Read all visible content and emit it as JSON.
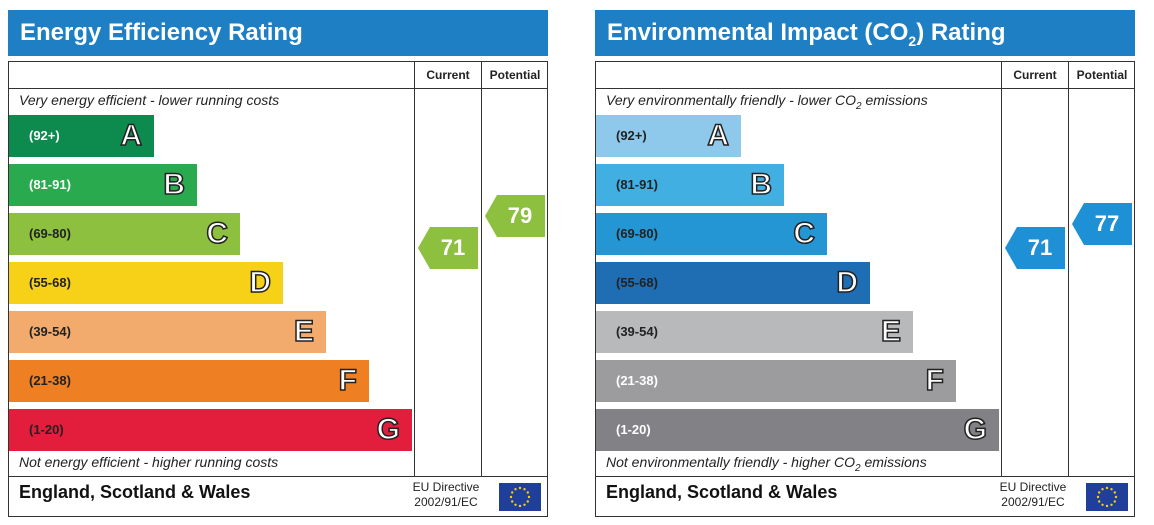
{
  "chart_data": [
    {
      "type": "bar",
      "title": "Energy Efficiency Rating",
      "columns": [
        "Current",
        "Potential"
      ],
      "top_note": "Very energy efficient - lower running costs",
      "bottom_note": "Not energy efficient - higher running costs",
      "bands": [
        {
          "letter": "A",
          "range": "(92+)",
          "color": "#0d8b4f",
          "text_color": "#ffffff"
        },
        {
          "letter": "B",
          "range": "(81-91)",
          "color": "#2aaa4e",
          "text_color": "#ffffff"
        },
        {
          "letter": "C",
          "range": "(69-80)",
          "color": "#8dc03f",
          "text_color": "#222222"
        },
        {
          "letter": "D",
          "range": "(55-68)",
          "color": "#f7d117",
          "text_color": "#222222"
        },
        {
          "letter": "E",
          "range": "(39-54)",
          "color": "#f2ab6c",
          "text_color": "#222222"
        },
        {
          "letter": "F",
          "range": "(21-38)",
          "color": "#ee7f22",
          "text_color": "#222222"
        },
        {
          "letter": "G",
          "range": "(1-20)",
          "color": "#e31d3c",
          "text_color": "#222222"
        }
      ],
      "current": {
        "value": 71,
        "label": "71",
        "band": "C",
        "color": "#8dc03f"
      },
      "potential": {
        "value": 79,
        "label": "79",
        "band": "C",
        "color": "#8dc03f"
      }
    },
    {
      "type": "bar",
      "title": "Environmental Impact (CO",
      "title_sub": "2",
      "title_end": ") Rating",
      "columns": [
        "Current",
        "Potential"
      ],
      "top_note": "Very environmentally friendly - lower CO",
      "top_note_sub": "2",
      "top_note_end": " emissions",
      "bottom_note": "Not environmentally friendly - higher CO",
      "bottom_note_sub": "2",
      "bottom_note_end": " emissions",
      "bands": [
        {
          "letter": "A",
          "range": "(92+)",
          "color": "#8ec9ec",
          "text_color": "#222222"
        },
        {
          "letter": "B",
          "range": "(81-91)",
          "color": "#42afe3",
          "text_color": "#222222"
        },
        {
          "letter": "C",
          "range": "(69-80)",
          "color": "#2596d4",
          "text_color": "#222222"
        },
        {
          "letter": "D",
          "range": "(55-68)",
          "color": "#1f6eb4",
          "text_color": "#222222"
        },
        {
          "letter": "E",
          "range": "(39-54)",
          "color": "#b8b9bb",
          "text_color": "#222222"
        },
        {
          "letter": "F",
          "range": "(21-38)",
          "color": "#9c9c9f",
          "text_color": "#ffffff"
        },
        {
          "letter": "G",
          "range": "(1-20)",
          "color": "#828286",
          "text_color": "#ffffff"
        }
      ],
      "current": {
        "value": 71,
        "label": "71",
        "band": "C",
        "color": "#1e90d6"
      },
      "potential": {
        "value": 77,
        "label": "77",
        "band": "C",
        "color": "#1e90d6"
      }
    }
  ],
  "footer": {
    "country": "England, Scotland & Wales",
    "directive_line1": "EU Directive",
    "directive_line2": "2002/91/EC"
  }
}
